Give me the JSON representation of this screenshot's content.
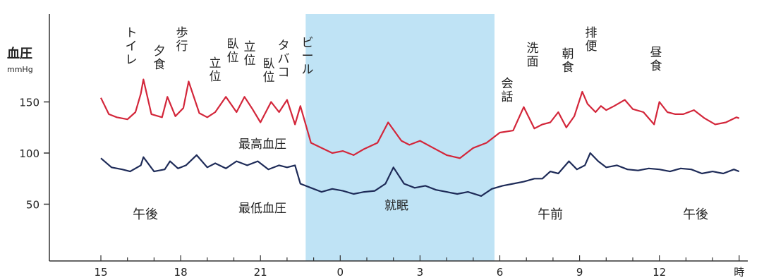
{
  "chart_data": {
    "type": "line",
    "ylabel": "血圧",
    "yunit": "mmHg",
    "xunit": "時",
    "x_ticks": [
      "15",
      "18",
      "21",
      "0",
      "3",
      "6",
      "9",
      "12"
    ],
    "y_ticks": [
      150,
      100,
      50
    ],
    "sleep_band": {
      "start": 22.7,
      "end": 29.8,
      "color": "#bfe3f5"
    },
    "series": [
      {
        "name": "最高血圧",
        "color": "#d3263a",
        "x": [
          15.0,
          15.3,
          15.6,
          16.0,
          16.3,
          16.5,
          16.6,
          16.9,
          17.3,
          17.5,
          17.8,
          18.1,
          18.3,
          18.7,
          19.0,
          19.3,
          19.7,
          20.1,
          20.4,
          20.7,
          21.0,
          21.4,
          21.7,
          22.0,
          22.3,
          22.5,
          22.9,
          23.3,
          23.7,
          24.1,
          24.5,
          24.9,
          25.4,
          25.8,
          26.3,
          26.6,
          27.0,
          27.5,
          28.0,
          28.5,
          29.0,
          29.5,
          30.0,
          30.5,
          30.9,
          31.3,
          31.6,
          31.9,
          32.2,
          32.5,
          32.8,
          33.1,
          33.3,
          33.6,
          33.8,
          34.0,
          34.3,
          34.7,
          35.0,
          35.4,
          35.8,
          36.0,
          36.3,
          36.6,
          36.9,
          37.3,
          37.7,
          38.1,
          38.5,
          38.9,
          39.0
        ],
        "values": [
          154,
          138,
          135,
          133,
          140,
          158,
          172,
          138,
          135,
          155,
          136,
          144,
          170,
          139,
          135,
          140,
          155,
          140,
          155,
          143,
          130,
          150,
          140,
          152,
          128,
          146,
          110,
          105,
          100,
          102,
          98,
          104,
          110,
          130,
          112,
          108,
          112,
          105,
          98,
          95,
          105,
          110,
          120,
          122,
          145,
          124,
          128,
          130,
          140,
          125,
          136,
          160,
          148,
          140,
          146,
          142,
          146,
          152,
          143,
          140,
          128,
          150,
          140,
          138,
          138,
          142,
          134,
          128,
          130,
          135,
          134
        ]
      },
      {
        "name": "最低血圧",
        "color": "#1e2b58",
        "x": [
          15.0,
          15.4,
          15.8,
          16.1,
          16.5,
          16.6,
          17.0,
          17.4,
          17.6,
          17.9,
          18.2,
          18.6,
          19.0,
          19.3,
          19.7,
          20.1,
          20.5,
          20.9,
          21.3,
          21.7,
          22.0,
          22.3,
          22.5,
          22.9,
          23.3,
          23.7,
          24.1,
          24.5,
          24.9,
          25.3,
          25.7,
          26.0,
          26.4,
          26.8,
          27.2,
          27.6,
          28.0,
          28.4,
          28.8,
          29.3,
          29.7,
          30.1,
          30.5,
          30.9,
          31.3,
          31.6,
          31.9,
          32.2,
          32.6,
          32.9,
          33.2,
          33.4,
          33.7,
          34.0,
          34.4,
          34.8,
          35.2,
          35.6,
          36.0,
          36.4,
          36.8,
          37.2,
          37.6,
          38.0,
          38.4,
          38.8,
          39.0
        ],
        "values": [
          95,
          86,
          84,
          82,
          88,
          96,
          82,
          84,
          92,
          85,
          88,
          98,
          86,
          90,
          85,
          92,
          88,
          92,
          84,
          88,
          86,
          88,
          70,
          66,
          62,
          65,
          63,
          60,
          62,
          63,
          70,
          86,
          70,
          66,
          68,
          64,
          62,
          60,
          62,
          58,
          65,
          68,
          70,
          72,
          75,
          75,
          82,
          80,
          92,
          84,
          88,
          100,
          92,
          86,
          88,
          84,
          83,
          85,
          84,
          82,
          85,
          84,
          80,
          82,
          80,
          84,
          82
        ]
      }
    ],
    "event_labels": [
      "トイレ",
      "夕食",
      "歩行",
      "立位",
      "臥位",
      "立位",
      "臥位",
      "タバコ",
      "ビール",
      "会話",
      "洗面",
      "朝食",
      "排便",
      "昼食"
    ],
    "band_labels": {
      "pm1": "午後",
      "low": "最低血圧",
      "high": "最高血圧",
      "sleep": "就眠",
      "am": "午前",
      "pm2": "午後"
    }
  }
}
